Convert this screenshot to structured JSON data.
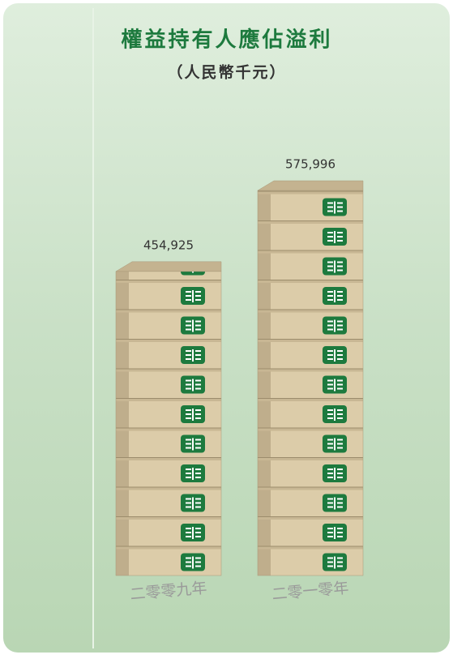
{
  "chart_data": {
    "type": "bar",
    "title": "權益持有人應佔溢利",
    "subtitle": "（人民幣千元）",
    "categories": [
      "二零零九年",
      "二零一零年"
    ],
    "values": [
      454925,
      575996
    ],
    "value_labels": [
      "454,925",
      "575,996"
    ],
    "color": "#d9c9a5"
  }
}
